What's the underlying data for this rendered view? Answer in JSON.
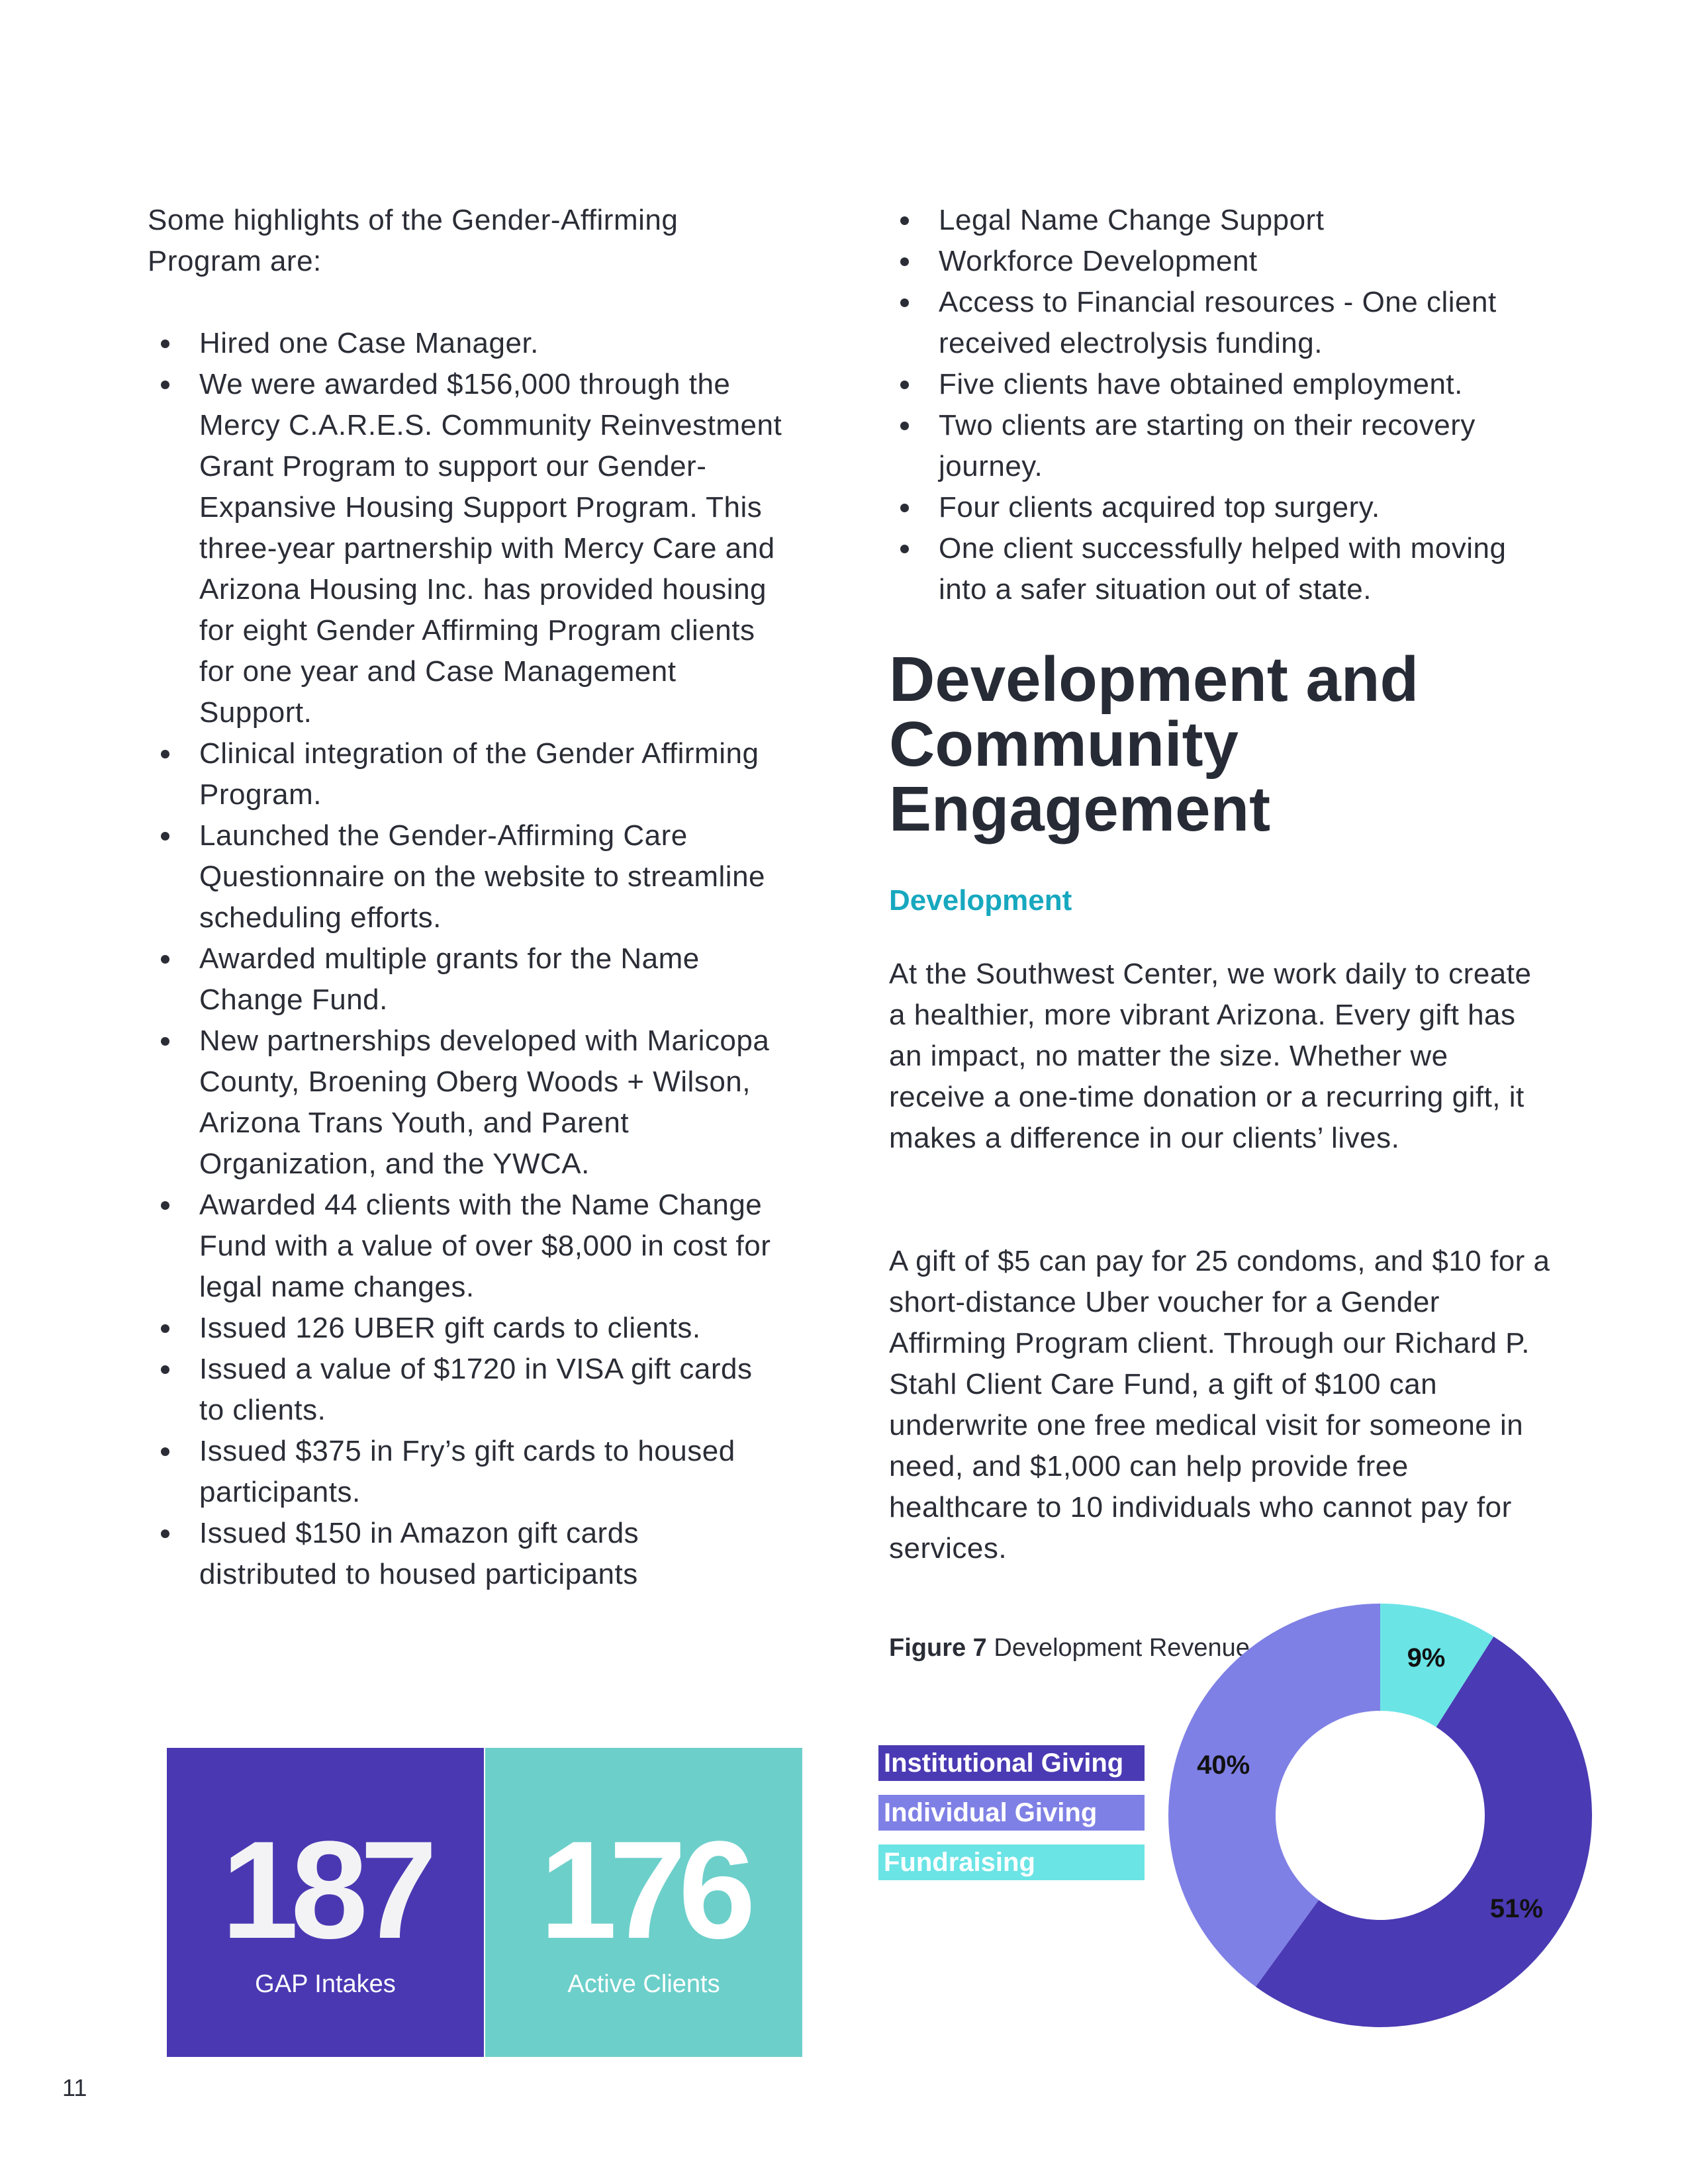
{
  "left": {
    "intro": "Some highlights of the Gender-Affirming Program are:",
    "bullets": [
      "Hired one Case Manager.",
      "We were awarded $156,000 through the Mercy C.A.R.E.S. Community Reinvestment Grant Program to support our Gender-Expansive Housing Support Program. This three-year partnership with Mercy Care and Arizona Housing Inc. has provided housing for eight Gender Affirming Program clients for one year and Case Management Support.",
      "Clinical integration of the Gender Affirming Program.",
      "Launched the Gender-Affirming Care Questionnaire on the website to streamline scheduling efforts.",
      "Awarded multiple grants for the Name Change Fund.",
      "New partnerships developed with Maricopa County, Broening Oberg Woods + Wilson, Arizona Trans Youth, and Parent Organization, and the YWCA.",
      "Awarded 44 clients with the Name Change Fund with a value of over $8,000 in cost for legal name changes.",
      "Issued 126 UBER gift cards to clients.",
      "Issued a value of $1720 in VISA gift cards to clients.",
      "Issued $375 in Fry’s gift cards to housed participants.",
      "Issued $150 in Amazon gift cards distributed to housed participants"
    ]
  },
  "right": {
    "bullets": [
      "Legal Name Change Support",
      "Workforce Development",
      "Access to Financial resources - One client received electrolysis funding.",
      "Five clients have obtained employment.",
      "Two clients are starting on their recovery journey.",
      "Four clients acquired top surgery.",
      "One client successfully helped with moving into a safer situation out of state."
    ],
    "heading": "Development and Community Engagement",
    "subheading": "Development",
    "paragraphs": [
      "At the Southwest Center, we work daily to create a healthier, more vibrant Arizona. Every gift has an impact, no matter the size. Whether we receive a one-time donation or a recurring gift, it makes a difference in our clients’ lives.",
      "A gift of $5 can pay for 25 condoms, and $10 for a short-distance Uber voucher for a Gender Affirming Program client. Through our Richard P. Stahl Client Care Fund, a gift of $100 can underwrite one free medical visit for someone in need, and $1,000 can help provide free healthcare to 10 individuals who cannot pay for services."
    ]
  },
  "stats": [
    {
      "value": "187",
      "label": "GAP Intakes",
      "color": "#4a38b3"
    },
    {
      "value": "176",
      "label": "Active Clients",
      "color": "#6ccfca"
    }
  ],
  "chart_data": {
    "type": "pie",
    "variant": "donut",
    "caption_prefix": "Figure  7",
    "caption": "Development Revenue",
    "legend_placement": "left",
    "series": [
      {
        "name": "Fundraising",
        "value": 9,
        "label": "9%",
        "color": "#6be4e6"
      },
      {
        "name": "Institutional Giving",
        "value": 51,
        "label": "51%",
        "color": "#4a3ab3"
      },
      {
        "name": "Individual Giving",
        "value": 40,
        "label": "40%",
        "color": "#7f80e5"
      }
    ],
    "legend": [
      "Institutional Giving",
      "Individual Giving",
      "Fundraising"
    ]
  },
  "page_number": "11"
}
